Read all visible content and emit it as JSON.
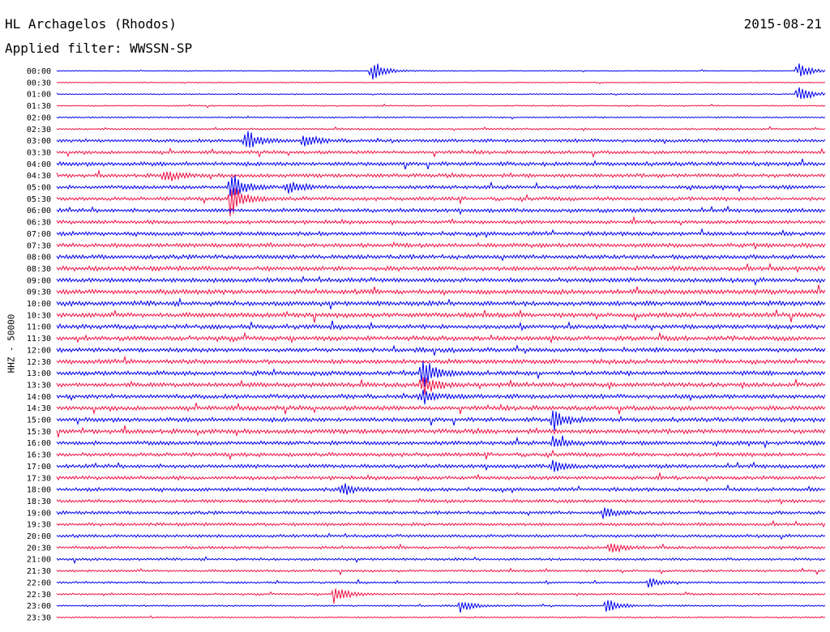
{
  "header": {
    "station": "HL Archagelos (Rhodos)",
    "date": "2015-08-21",
    "filter": "Applied filter: WWSSN-SP"
  },
  "chart_data": {
    "type": "helicorder",
    "ylabel": "HHZ - 50000",
    "trace_colors": [
      "#0000ee",
      "#ee1144"
    ],
    "rows": [
      "00:00",
      "00:30",
      "01:00",
      "01:30",
      "02:00",
      "02:30",
      "03:00",
      "03:30",
      "04:00",
      "04:30",
      "05:00",
      "05:30",
      "06:00",
      "06:30",
      "07:00",
      "07:30",
      "08:00",
      "08:30",
      "09:00",
      "09:30",
      "10:00",
      "10:30",
      "11:00",
      "11:30",
      "12:00",
      "12:30",
      "13:00",
      "13:30",
      "14:00",
      "14:30",
      "15:00",
      "15:30",
      "16:00",
      "16:30",
      "17:00",
      "17:30",
      "18:00",
      "18:30",
      "19:00",
      "19:30",
      "20:00",
      "20:30",
      "21:00",
      "21:30",
      "22:00",
      "22:30",
      "23:00",
      "23:30"
    ],
    "noise_level": [
      0.5,
      0.5,
      0.5,
      0.6,
      0.7,
      0.9,
      1.6,
      1.6,
      2.0,
      1.8,
      1.8,
      1.8,
      1.9,
      1.8,
      2.0,
      2.0,
      2.1,
      2.2,
      2.2,
      2.3,
      2.3,
      2.3,
      2.2,
      2.2,
      2.1,
      2.2,
      2.2,
      2.2,
      2.1,
      2.2,
      2.1,
      2.2,
      2.0,
      1.9,
      1.9,
      1.8,
      1.8,
      1.6,
      1.6,
      1.5,
      1.5,
      1.4,
      1.2,
      1.1,
      1.0,
      0.9,
      0.8,
      0.7
    ],
    "events": [
      {
        "row": 0,
        "t": 0.41,
        "amp": 12
      },
      {
        "row": 0,
        "t": 0.965,
        "amp": 10
      },
      {
        "row": 2,
        "t": 0.965,
        "amp": 12
      },
      {
        "row": 6,
        "t": 0.32,
        "amp": 9
      },
      {
        "row": 6,
        "t": 0.245,
        "amp": 14
      },
      {
        "row": 10,
        "t": 0.225,
        "amp": 20
      },
      {
        "row": 10,
        "t": 0.3,
        "amp": 9
      },
      {
        "row": 11,
        "t": 0.225,
        "amp": 22
      },
      {
        "row": 9,
        "t": 0.14,
        "amp": 8
      },
      {
        "row": 26,
        "t": 0.475,
        "amp": 20
      },
      {
        "row": 27,
        "t": 0.475,
        "amp": 14
      },
      {
        "row": 28,
        "t": 0.475,
        "amp": 10
      },
      {
        "row": 30,
        "t": 0.645,
        "amp": 14
      },
      {
        "row": 32,
        "t": 0.645,
        "amp": 9
      },
      {
        "row": 34,
        "t": 0.645,
        "amp": 8
      },
      {
        "row": 36,
        "t": 0.37,
        "amp": 8
      },
      {
        "row": 38,
        "t": 0.71,
        "amp": 7
      },
      {
        "row": 41,
        "t": 0.72,
        "amp": 8
      },
      {
        "row": 44,
        "t": 0.77,
        "amp": 6
      },
      {
        "row": 45,
        "t": 0.36,
        "amp": 12
      },
      {
        "row": 46,
        "t": 0.715,
        "amp": 9
      },
      {
        "row": 46,
        "t": 0.525,
        "amp": 7
      }
    ]
  }
}
